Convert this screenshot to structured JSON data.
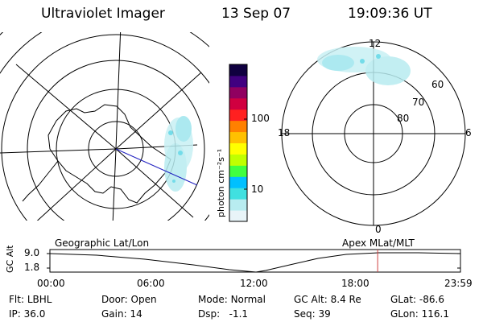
{
  "header": {
    "title": "Ultraviolet Imager",
    "date": "13 Sep 07",
    "time": "19:09:36 UT"
  },
  "left_map": {
    "caption": "Geographic Lat/Lon"
  },
  "colorbar": {
    "unit_label": "photon cm⁻²s⁻¹",
    "tick_labels": [
      "100",
      "10"
    ],
    "scale": "log",
    "colors": [
      "#e8f4f8",
      "#b8ecf0",
      "#40e0e0",
      "#00c0ff",
      "#40ff40",
      "#c0ff00",
      "#ffff00",
      "#ffc000",
      "#ff8000",
      "#ff2020",
      "#d00040",
      "#900060",
      "#400080",
      "#100040"
    ]
  },
  "right_map": {
    "caption": "Apex MLat/MLT",
    "mlt_labels": {
      "top": "12",
      "left": "18",
      "right": "6",
      "bottom": "0"
    },
    "lat_labels": [
      "60",
      "70",
      "80"
    ]
  },
  "timeline": {
    "y_label": "GC Alt",
    "y_ticks": [
      "9.0",
      "1.8"
    ],
    "x_ticks": [
      "00:00",
      "06:00",
      "12:00",
      "18:00",
      "23:59"
    ],
    "marker_time_hours": 19.16,
    "marker_color": "#d04040"
  },
  "status": {
    "row1": [
      {
        "key": "Flt:",
        "value": "LBHL"
      },
      {
        "key": "Door:",
        "value": "Open"
      },
      {
        "key": "Mode:",
        "value": "Normal"
      },
      {
        "key": "GC Alt:",
        "value": "8.4 Re"
      },
      {
        "key": "GLat:",
        "value": "-86.6"
      }
    ],
    "row2": [
      {
        "key": "IP:",
        "value": "36.0"
      },
      {
        "key": "Gain:",
        "value": "14"
      },
      {
        "key": "Dsp:",
        "value": "  -1.1"
      },
      {
        "key": "Seq:",
        "value": "39"
      },
      {
        "key": "GLon:",
        "value": "116.1"
      }
    ]
  }
}
